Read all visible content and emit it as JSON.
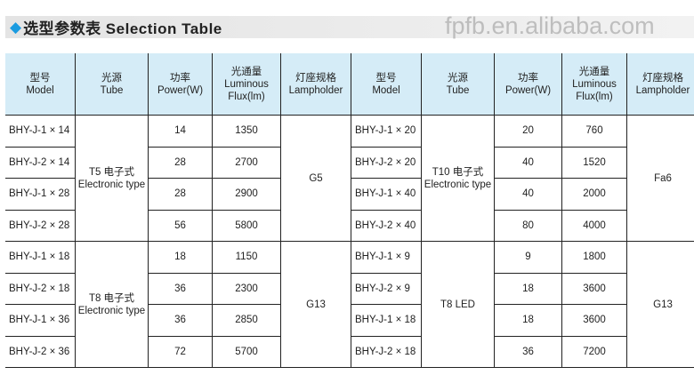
{
  "title": "选型参数表 Selection Table",
  "icon": "diamond-icon",
  "accent": "#1a9be0",
  "headers": [
    [
      "型号",
      "Model"
    ],
    [
      "光源",
      "Tube"
    ],
    [
      "功率",
      "Power(W)"
    ],
    [
      "光通量",
      "Luminous",
      "Flux(lm)"
    ],
    [
      "灯座规格",
      "Lampholder"
    ],
    [
      "型号",
      "Model"
    ],
    [
      "光源",
      "Tube"
    ],
    [
      "功率",
      "Power(W)"
    ],
    [
      "光通量",
      "Luminous",
      "Flux(lm)"
    ],
    [
      "灯座规格",
      "Lampholder"
    ]
  ],
  "left": {
    "models": [
      "BHY-J-1 × 14",
      "BHY-J-2 × 14",
      "BHY-J-1 × 28",
      "BHY-J-2 × 28",
      "BHY-J-1 × 18",
      "BHY-J-2 × 18",
      "BHY-J-1 × 36",
      "BHY-J-2 × 36"
    ],
    "power": [
      "14",
      "28",
      "28",
      "56",
      "18",
      "36",
      "36",
      "72"
    ],
    "flux": [
      "1350",
      "2700",
      "2900",
      "5800",
      "1150",
      "2300",
      "2850",
      "5700"
    ],
    "tube_a": [
      "T5 电子式",
      "Electronic type"
    ],
    "tube_b": [
      "T8 电子式",
      "Electronic type"
    ],
    "holder_a": "G5",
    "holder_b": "G13"
  },
  "right": {
    "models": [
      "BHY-J-1 × 20",
      "BHY-J-2 × 20",
      "BHY-J-1 × 40",
      "BHY-J-2 × 40",
      "BHY-J-1 × 9",
      "BHY-J-2 × 9",
      "BHY-J-1 × 18",
      "BHY-J-2 × 18"
    ],
    "power": [
      "20",
      "40",
      "40",
      "80",
      "9",
      "18",
      "18",
      "36"
    ],
    "flux": [
      "760",
      "1520",
      "2000",
      "4000",
      "1800",
      "3600",
      "3600",
      "7200"
    ],
    "tube_a": [
      "T10 电子式",
      "Electronic type"
    ],
    "tube_b": "T8 LED",
    "holder_a": "Fa6",
    "holder_b": "G13"
  },
  "watermark": "fpfb.en.alibaba.com"
}
